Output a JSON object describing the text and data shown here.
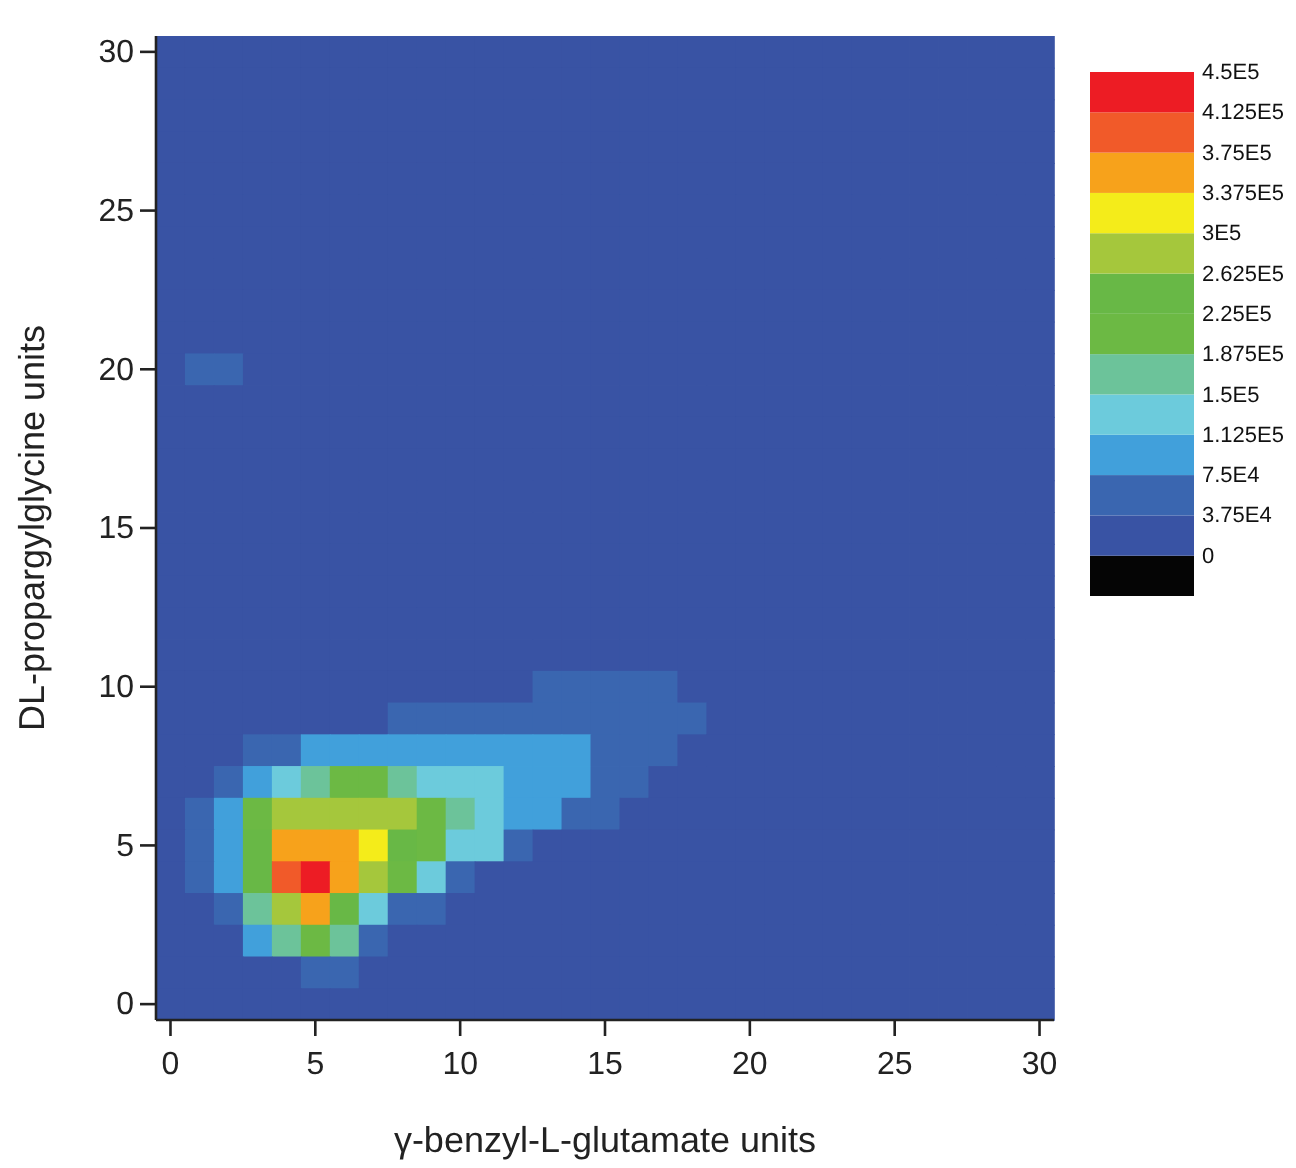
{
  "chart_data": {
    "type": "heatmap",
    "xlabel": "γ-benzyl-L-glutamate units",
    "ylabel": "DL-propargylglycine units",
    "categories": [
      "0",
      null,
      null,
      null,
      null,
      "5",
      null,
      null,
      null,
      null,
      "10",
      null,
      null,
      null,
      null,
      "15",
      null,
      null,
      null,
      null,
      "20",
      null,
      null,
      null,
      null,
      "25",
      null,
      null,
      null,
      null,
      "30"
    ],
    "y_categories": [
      "30",
      null,
      null,
      null,
      null,
      "25",
      null,
      null,
      null,
      null,
      "20",
      null,
      null,
      null,
      null,
      "15",
      null,
      null,
      null,
      null,
      "10",
      null,
      null,
      null,
      null,
      "5",
      null,
      null,
      null,
      null,
      "0"
    ],
    "clim": [
      -37500,
      450000
    ],
    "cticks": [
      {
        "value": -37500,
        "label": null
      },
      {
        "value": 0,
        "label": "0"
      },
      {
        "value": 37500,
        "label": "3.75E4"
      },
      {
        "value": 75000,
        "label": "7.5E4"
      },
      {
        "value": 112500,
        "label": "1.125E5"
      },
      {
        "value": 150000,
        "label": "1.5E5"
      },
      {
        "value": 187500,
        "label": "1.875E5"
      },
      {
        "value": 225000,
        "label": "2.25E5"
      },
      {
        "value": 262500,
        "label": "2.625E5"
      },
      {
        "value": 300000,
        "label": "3E5"
      },
      {
        "value": 337500,
        "label": "3.375E5"
      },
      {
        "value": 375000,
        "label": "3.75E5"
      },
      {
        "value": 412500,
        "label": "4.125E5"
      },
      {
        "value": 450000,
        "label": "4.5E5"
      }
    ],
    "colors": [
      "#050505",
      "#3953a4",
      "#3a66b0",
      "#41a0db",
      "#6ccbdc",
      "#6cc39a",
      "#6cb944",
      "#68b846",
      "#a5c73c",
      "#f4ec1a",
      "#f7a21b",
      "#f15a29",
      "#ed1c24"
    ],
    "cells": [
      [
        20000,
        20000,
        20000,
        20000,
        20000,
        20000,
        20000,
        20000,
        20000,
        20000,
        20000,
        20000,
        20000,
        20000,
        20000,
        20000,
        20000,
        20000,
        20000,
        20000,
        20000,
        20000,
        20000,
        20000,
        20000,
        20000,
        20000,
        20000,
        20000,
        20000,
        20000
      ],
      [
        20000,
        20000,
        20000,
        20000,
        20000,
        20000,
        20000,
        20000,
        20000,
        20000,
        20000,
        20000,
        20000,
        20000,
        20000,
        20000,
        20000,
        20000,
        20000,
        20000,
        20000,
        20000,
        20000,
        20000,
        20000,
        20000,
        20000,
        20000,
        20000,
        20000,
        20000
      ],
      [
        20000,
        20000,
        20000,
        20000,
        20000,
        20000,
        20000,
        20000,
        20000,
        20000,
        20000,
        20000,
        20000,
        20000,
        20000,
        20000,
        20000,
        20000,
        20000,
        20000,
        20000,
        20000,
        20000,
        20000,
        20000,
        20000,
        20000,
        20000,
        20000,
        20000,
        20000
      ],
      [
        20000,
        20000,
        20000,
        20000,
        20000,
        20000,
        20000,
        20000,
        20000,
        20000,
        20000,
        20000,
        20000,
        20000,
        20000,
        20000,
        20000,
        20000,
        20000,
        20000,
        20000,
        20000,
        20000,
        20000,
        20000,
        20000,
        20000,
        20000,
        20000,
        20000,
        20000
      ],
      [
        20000,
        20000,
        20000,
        20000,
        20000,
        20000,
        20000,
        20000,
        20000,
        20000,
        20000,
        20000,
        20000,
        20000,
        20000,
        20000,
        20000,
        20000,
        20000,
        20000,
        20000,
        20000,
        20000,
        20000,
        20000,
        20000,
        20000,
        20000,
        20000,
        20000,
        20000
      ],
      [
        20000,
        20000,
        20000,
        20000,
        20000,
        20000,
        20000,
        20000,
        20000,
        20000,
        20000,
        20000,
        20000,
        20000,
        20000,
        20000,
        20000,
        20000,
        20000,
        20000,
        20000,
        20000,
        20000,
        20000,
        20000,
        20000,
        20000,
        20000,
        20000,
        20000,
        20000
      ],
      [
        20000,
        20000,
        20000,
        20000,
        20000,
        20000,
        20000,
        20000,
        20000,
        20000,
        20000,
        20000,
        20000,
        20000,
        20000,
        20000,
        20000,
        20000,
        20000,
        20000,
        20000,
        20000,
        20000,
        20000,
        20000,
        20000,
        20000,
        20000,
        20000,
        20000,
        20000
      ],
      [
        20000,
        20000,
        20000,
        20000,
        20000,
        20000,
        20000,
        20000,
        20000,
        20000,
        20000,
        20000,
        20000,
        20000,
        20000,
        20000,
        20000,
        20000,
        20000,
        20000,
        20000,
        20000,
        20000,
        20000,
        20000,
        20000,
        20000,
        20000,
        20000,
        20000,
        20000
      ],
      [
        20000,
        20000,
        20000,
        20000,
        20000,
        20000,
        20000,
        20000,
        20000,
        20000,
        20000,
        20000,
        20000,
        20000,
        20000,
        20000,
        20000,
        20000,
        20000,
        20000,
        20000,
        20000,
        20000,
        20000,
        20000,
        20000,
        20000,
        20000,
        20000,
        20000,
        20000
      ],
      [
        20000,
        20000,
        20000,
        20000,
        20000,
        20000,
        20000,
        20000,
        20000,
        20000,
        20000,
        20000,
        20000,
        20000,
        20000,
        20000,
        20000,
        20000,
        20000,
        20000,
        20000,
        20000,
        20000,
        20000,
        20000,
        20000,
        20000,
        20000,
        20000,
        20000,
        20000
      ],
      [
        20000,
        55000,
        55000,
        20000,
        20000,
        20000,
        20000,
        20000,
        20000,
        20000,
        20000,
        20000,
        20000,
        20000,
        20000,
        20000,
        20000,
        20000,
        20000,
        20000,
        20000,
        20000,
        20000,
        20000,
        20000,
        20000,
        20000,
        20000,
        20000,
        20000,
        20000
      ],
      [
        20000,
        20000,
        20000,
        20000,
        20000,
        20000,
        20000,
        20000,
        20000,
        20000,
        20000,
        20000,
        20000,
        20000,
        20000,
        20000,
        20000,
        20000,
        20000,
        20000,
        20000,
        20000,
        20000,
        20000,
        20000,
        20000,
        20000,
        20000,
        20000,
        20000,
        20000
      ],
      [
        20000,
        20000,
        20000,
        20000,
        20000,
        20000,
        20000,
        20000,
        20000,
        20000,
        20000,
        20000,
        20000,
        20000,
        20000,
        20000,
        20000,
        20000,
        20000,
        20000,
        20000,
        20000,
        20000,
        20000,
        20000,
        20000,
        20000,
        20000,
        20000,
        20000,
        20000
      ],
      [
        20000,
        20000,
        20000,
        20000,
        20000,
        20000,
        20000,
        20000,
        20000,
        20000,
        20000,
        20000,
        20000,
        20000,
        20000,
        20000,
        20000,
        20000,
        20000,
        20000,
        20000,
        20000,
        20000,
        20000,
        20000,
        20000,
        20000,
        20000,
        20000,
        20000,
        20000
      ],
      [
        20000,
        20000,
        20000,
        20000,
        20000,
        20000,
        20000,
        20000,
        20000,
        20000,
        20000,
        20000,
        20000,
        20000,
        20000,
        20000,
        20000,
        20000,
        20000,
        20000,
        20000,
        20000,
        20000,
        20000,
        20000,
        20000,
        20000,
        20000,
        20000,
        20000,
        20000
      ],
      [
        20000,
        20000,
        20000,
        20000,
        20000,
        20000,
        20000,
        20000,
        20000,
        20000,
        20000,
        20000,
        20000,
        20000,
        20000,
        20000,
        20000,
        20000,
        20000,
        20000,
        20000,
        20000,
        20000,
        20000,
        20000,
        20000,
        20000,
        20000,
        20000,
        20000,
        20000
      ],
      [
        20000,
        20000,
        20000,
        20000,
        20000,
        20000,
        20000,
        20000,
        20000,
        20000,
        20000,
        20000,
        20000,
        20000,
        20000,
        20000,
        20000,
        20000,
        20000,
        20000,
        20000,
        20000,
        20000,
        20000,
        20000,
        20000,
        20000,
        20000,
        20000,
        20000,
        20000
      ],
      [
        20000,
        20000,
        20000,
        20000,
        20000,
        20000,
        20000,
        20000,
        20000,
        20000,
        20000,
        20000,
        20000,
        20000,
        20000,
        20000,
        20000,
        20000,
        20000,
        20000,
        20000,
        20000,
        20000,
        20000,
        20000,
        20000,
        20000,
        20000,
        20000,
        20000,
        20000
      ],
      [
        20000,
        20000,
        20000,
        20000,
        20000,
        20000,
        20000,
        20000,
        20000,
        20000,
        20000,
        20000,
        20000,
        20000,
        20000,
        20000,
        20000,
        20000,
        20000,
        20000,
        20000,
        20000,
        20000,
        20000,
        20000,
        20000,
        20000,
        20000,
        20000,
        20000,
        20000
      ],
      [
        20000,
        20000,
        20000,
        20000,
        20000,
        20000,
        20000,
        20000,
        20000,
        20000,
        20000,
        20000,
        20000,
        20000,
        20000,
        20000,
        20000,
        20000,
        20000,
        20000,
        20000,
        20000,
        20000,
        20000,
        20000,
        20000,
        20000,
        20000,
        20000,
        20000,
        20000
      ],
      [
        20000,
        20000,
        20000,
        20000,
        20000,
        20000,
        20000,
        20000,
        20000,
        20000,
        20000,
        20000,
        20000,
        55000,
        55000,
        55000,
        55000,
        55000,
        20000,
        20000,
        20000,
        20000,
        20000,
        20000,
        20000,
        20000,
        20000,
        20000,
        20000,
        20000,
        20000
      ],
      [
        20000,
        20000,
        20000,
        20000,
        20000,
        20000,
        20000,
        20000,
        55000,
        55000,
        55000,
        55000,
        55000,
        55000,
        55000,
        55000,
        55000,
        55000,
        55000,
        20000,
        20000,
        20000,
        20000,
        20000,
        20000,
        20000,
        20000,
        20000,
        20000,
        20000,
        20000
      ],
      [
        20000,
        20000,
        20000,
        55000,
        55000,
        95000,
        95000,
        95000,
        95000,
        95000,
        95000,
        95000,
        95000,
        95000,
        95000,
        55000,
        55000,
        55000,
        20000,
        20000,
        20000,
        20000,
        20000,
        20000,
        20000,
        20000,
        20000,
        20000,
        20000,
        20000,
        20000
      ],
      [
        20000,
        20000,
        55000,
        95000,
        130000,
        170000,
        205000,
        205000,
        170000,
        130000,
        130000,
        130000,
        95000,
        95000,
        95000,
        55000,
        55000,
        20000,
        20000,
        20000,
        20000,
        20000,
        20000,
        20000,
        20000,
        20000,
        20000,
        20000,
        20000,
        20000,
        20000
      ],
      [
        20000,
        55000,
        95000,
        205000,
        280000,
        280000,
        280000,
        280000,
        280000,
        205000,
        170000,
        130000,
        95000,
        95000,
        55000,
        55000,
        20000,
        20000,
        20000,
        20000,
        20000,
        20000,
        20000,
        20000,
        20000,
        20000,
        20000,
        20000,
        20000,
        20000,
        20000
      ],
      [
        20000,
        55000,
        95000,
        245000,
        355000,
        355000,
        355000,
        320000,
        245000,
        205000,
        130000,
        130000,
        55000,
        20000,
        20000,
        20000,
        20000,
        20000,
        20000,
        20000,
        20000,
        20000,
        20000,
        20000,
        20000,
        20000,
        20000,
        20000,
        20000,
        20000,
        20000
      ],
      [
        20000,
        55000,
        95000,
        245000,
        395000,
        430000,
        355000,
        280000,
        205000,
        130000,
        55000,
        20000,
        20000,
        20000,
        20000,
        20000,
        20000,
        20000,
        20000,
        20000,
        20000,
        20000,
        20000,
        20000,
        20000,
        20000,
        20000,
        20000,
        20000,
        20000,
        20000
      ],
      [
        20000,
        20000,
        55000,
        170000,
        280000,
        355000,
        245000,
        130000,
        55000,
        55000,
        20000,
        20000,
        20000,
        20000,
        20000,
        20000,
        20000,
        20000,
        20000,
        20000,
        20000,
        20000,
        20000,
        20000,
        20000,
        20000,
        20000,
        20000,
        20000,
        20000,
        20000
      ],
      [
        20000,
        20000,
        20000,
        95000,
        170000,
        205000,
        170000,
        55000,
        20000,
        20000,
        20000,
        20000,
        20000,
        20000,
        20000,
        20000,
        20000,
        20000,
        20000,
        20000,
        20000,
        20000,
        20000,
        20000,
        20000,
        20000,
        20000,
        20000,
        20000,
        20000,
        20000
      ],
      [
        20000,
        20000,
        20000,
        20000,
        20000,
        55000,
        55000,
        20000,
        20000,
        20000,
        20000,
        20000,
        20000,
        20000,
        20000,
        20000,
        20000,
        20000,
        20000,
        20000,
        20000,
        20000,
        20000,
        20000,
        20000,
        20000,
        20000,
        20000,
        20000,
        20000,
        20000
      ],
      [
        20000,
        20000,
        20000,
        20000,
        20000,
        20000,
        20000,
        20000,
        20000,
        20000,
        20000,
        20000,
        20000,
        20000,
        20000,
        20000,
        20000,
        20000,
        20000,
        20000,
        20000,
        20000,
        20000,
        20000,
        20000,
        20000,
        20000,
        20000,
        20000,
        20000,
        20000
      ]
    ]
  }
}
